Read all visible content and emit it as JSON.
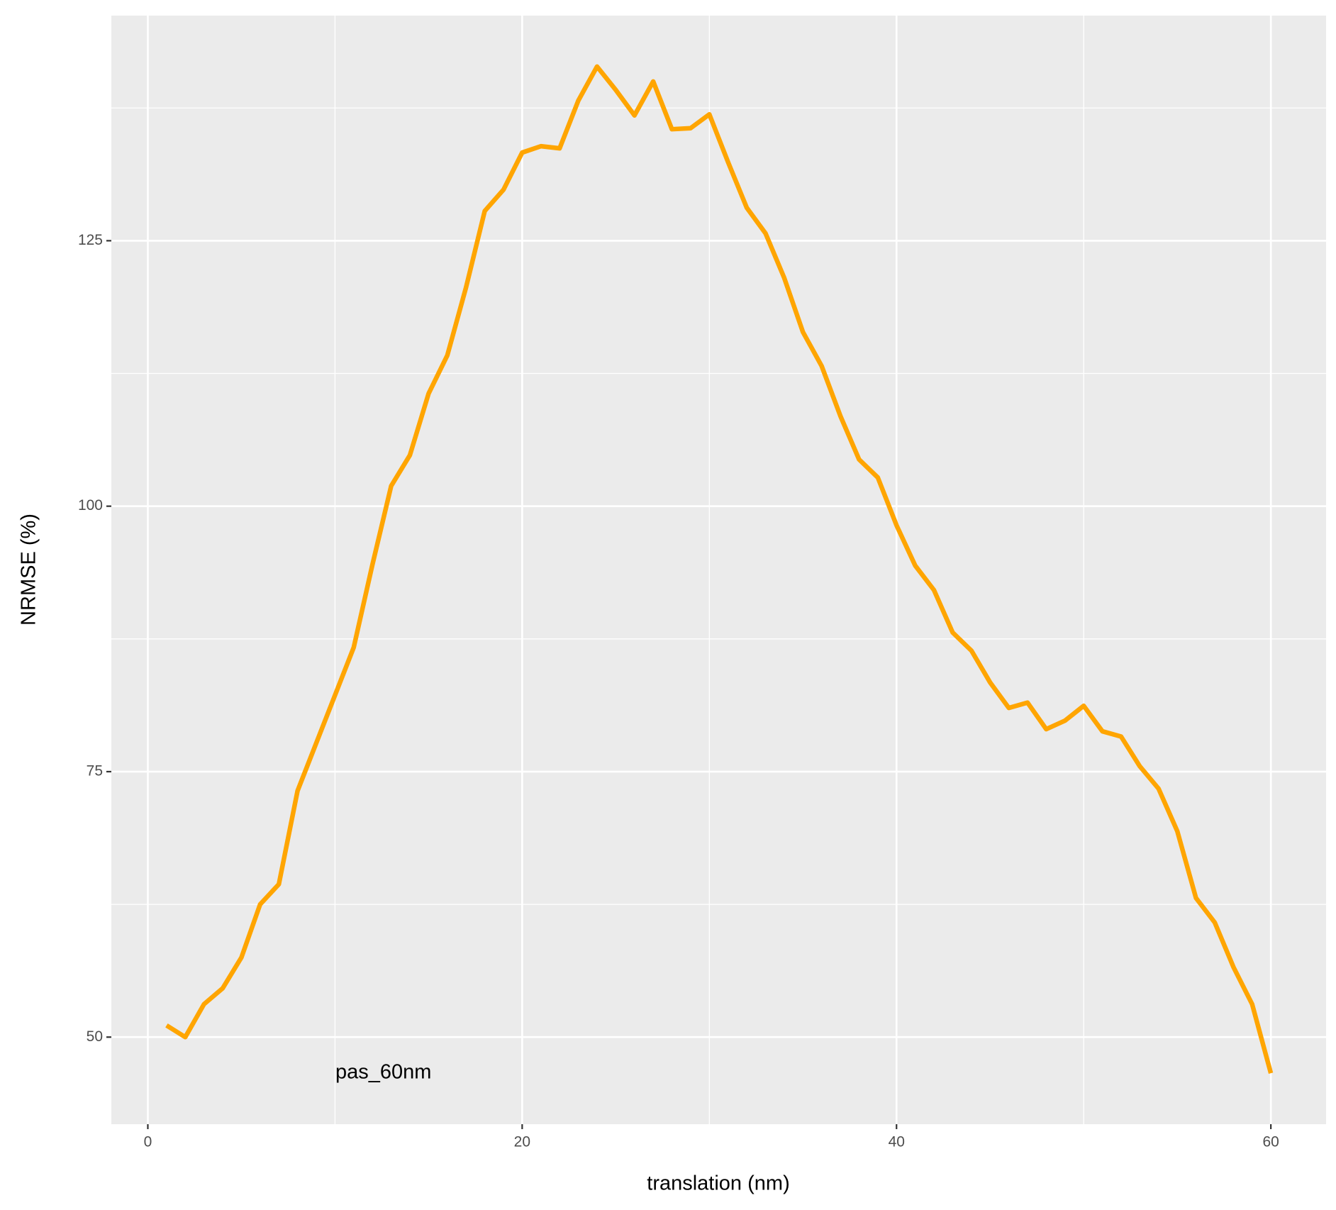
{
  "chart_data": {
    "type": "line",
    "x_label": "translation (nm)",
    "y_label": "NRMSE (%)",
    "annotation": "pas_60nm",
    "x": [
      1,
      2,
      3,
      4,
      5,
      6,
      7,
      8,
      9,
      10,
      11,
      12,
      13,
      14,
      15,
      16,
      17,
      18,
      19,
      20,
      21,
      22,
      23,
      24,
      25,
      26,
      27,
      28,
      29,
      30,
      31,
      32,
      33,
      34,
      35,
      36,
      37,
      38,
      39,
      40,
      41,
      42,
      43,
      44,
      45,
      46,
      47,
      48,
      49,
      50,
      51,
      52,
      53,
      54,
      55,
      56,
      57,
      58,
      59,
      60
    ],
    "series": [
      {
        "name": null,
        "color": "#ffa500",
        "values": [
          51.1,
          50.0,
          53.1,
          54.6,
          57.5,
          62.5,
          64.4,
          73.2,
          77.7,
          82.2,
          86.7,
          94.5,
          101.9,
          104.8,
          110.6,
          114.2,
          120.6,
          127.8,
          129.8,
          133.3,
          133.9,
          133.7,
          138.2,
          141.4,
          139.2,
          136.8,
          140.0,
          135.5,
          135.6,
          136.9,
          132.4,
          128.1,
          125.7,
          121.5,
          116.4,
          113.2,
          108.5,
          104.4,
          102.7,
          98.2,
          94.4,
          92.1,
          88.1,
          86.4,
          83.4,
          81.0,
          81.5,
          79.0,
          79.8,
          81.2,
          78.8,
          78.3,
          75.5,
          73.4,
          69.4,
          63.1,
          60.8,
          56.6,
          53.1,
          46.6
        ]
      }
    ],
    "xlim": [
      -1.95,
      62.95
    ],
    "xticks": [
      0,
      20,
      40,
      60
    ],
    "ylim": [
      41.8,
      146.2
    ],
    "yticks": [
      50,
      75,
      100,
      125
    ],
    "x_minor_grid": [
      10,
      30,
      50
    ],
    "y_minor_grid": [
      62.5,
      87.5,
      112.5,
      137.5
    ],
    "grid": true,
    "background": "#ebebeb"
  }
}
